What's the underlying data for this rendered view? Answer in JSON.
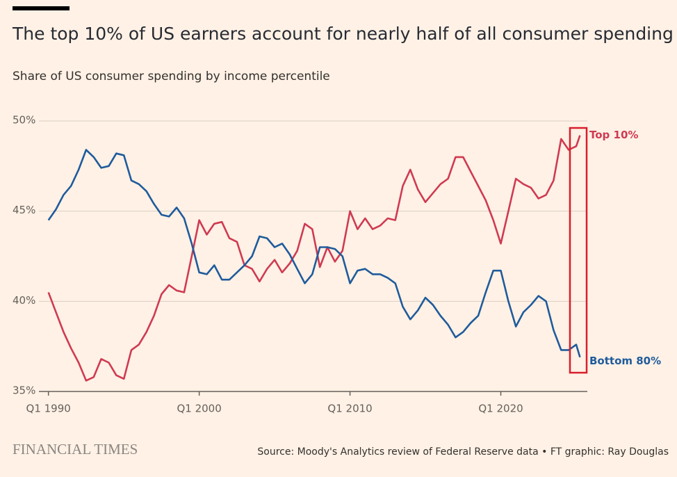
{
  "chart_data": {
    "type": "line",
    "title": "The top 10% of US earners account for nearly half of all consumer spending",
    "subtitle": "Share of US consumer spending by income percentile",
    "source": "Source: Moody's Analytics review of Federal Reserve data • FT graphic: Ray Douglas",
    "brand": "FINANCIAL TIMES",
    "x": [
      1990,
      1990.5,
      1991,
      1991.5,
      1992,
      1992.5,
      1993,
      1993.5,
      1994,
      1994.5,
      1995,
      1995.5,
      1996,
      1996.5,
      1997,
      1997.5,
      1998,
      1998.5,
      1999,
      1999.5,
      2000,
      2000.5,
      2001,
      2001.5,
      2002,
      2002.5,
      2003,
      2003.5,
      2004,
      2004.5,
      2005,
      2005.5,
      2006,
      2006.5,
      2007,
      2007.5,
      2008,
      2008.5,
      2009,
      2009.5,
      2010,
      2010.5,
      2011,
      2011.5,
      2012,
      2012.5,
      2013,
      2013.5,
      2014,
      2014.5,
      2015,
      2015.5,
      2016,
      2016.5,
      2017,
      2017.5,
      2018,
      2018.5,
      2019,
      2019.5,
      2020,
      2020.5,
      2021,
      2021.5,
      2022,
      2022.5,
      2023,
      2023.5,
      2024,
      2024.5,
      2025,
      2025.25
    ],
    "series": [
      {
        "name": "Top 10%",
        "color": "#cf3a52",
        "values": [
          40.5,
          39.4,
          38.3,
          37.4,
          36.6,
          35.6,
          35.8,
          36.8,
          36.6,
          35.9,
          35.7,
          37.3,
          37.6,
          38.3,
          39.2,
          40.4,
          40.9,
          40.6,
          40.5,
          42.5,
          44.5,
          43.7,
          44.3,
          44.4,
          43.5,
          43.3,
          42.0,
          41.8,
          41.1,
          41.8,
          42.3,
          41.6,
          42.1,
          42.8,
          44.3,
          44.0,
          41.9,
          43.0,
          42.2,
          42.8,
          45.0,
          44.0,
          44.6,
          44.0,
          44.2,
          44.6,
          44.5,
          46.4,
          47.3,
          46.2,
          45.5,
          46.0,
          46.5,
          46.8,
          48.0,
          48.0,
          47.2,
          46.4,
          45.6,
          44.5,
          43.2,
          45.0,
          46.8,
          46.5,
          46.3,
          45.7,
          45.9,
          46.7,
          49.0,
          48.4,
          48.6,
          49.2
        ]
      },
      {
        "name": "Bottom 80%",
        "color": "#1f5b9c",
        "values": [
          44.5,
          45.1,
          45.9,
          46.4,
          47.3,
          48.4,
          48.0,
          47.4,
          47.5,
          48.2,
          48.1,
          46.7,
          46.5,
          46.1,
          45.4,
          44.8,
          44.7,
          45.2,
          44.6,
          43.2,
          41.6,
          41.5,
          42.0,
          41.2,
          41.2,
          41.6,
          42.0,
          42.5,
          43.6,
          43.5,
          43.0,
          43.2,
          42.6,
          41.8,
          41.0,
          41.5,
          43.0,
          43.0,
          42.9,
          42.5,
          41.0,
          41.7,
          41.8,
          41.5,
          41.5,
          41.3,
          41.0,
          39.7,
          39.0,
          39.5,
          40.2,
          39.8,
          39.2,
          38.7,
          38.0,
          38.3,
          38.8,
          39.2,
          40.5,
          41.7,
          41.7,
          40.0,
          38.6,
          39.4,
          39.8,
          40.3,
          40.0,
          38.4,
          37.3,
          37.3,
          37.6,
          36.9
        ]
      }
    ],
    "xlim": [
      1989.6,
      2025.6
    ],
    "xticks": [
      {
        "value": 1990,
        "label": "Q1 1990"
      },
      {
        "value": 2000,
        "label": "Q1 2000"
      },
      {
        "value": 2010,
        "label": "Q1 2010"
      },
      {
        "value": 2020,
        "label": "Q1 2020"
      }
    ],
    "ylim": [
      35,
      50
    ],
    "yticks": [
      {
        "value": 35,
        "label": "35%"
      },
      {
        "value": 40,
        "label": "40%"
      },
      {
        "value": 45,
        "label": "45%"
      },
      {
        "value": 50,
        "label": "50%"
      }
    ],
    "grid": true
  }
}
